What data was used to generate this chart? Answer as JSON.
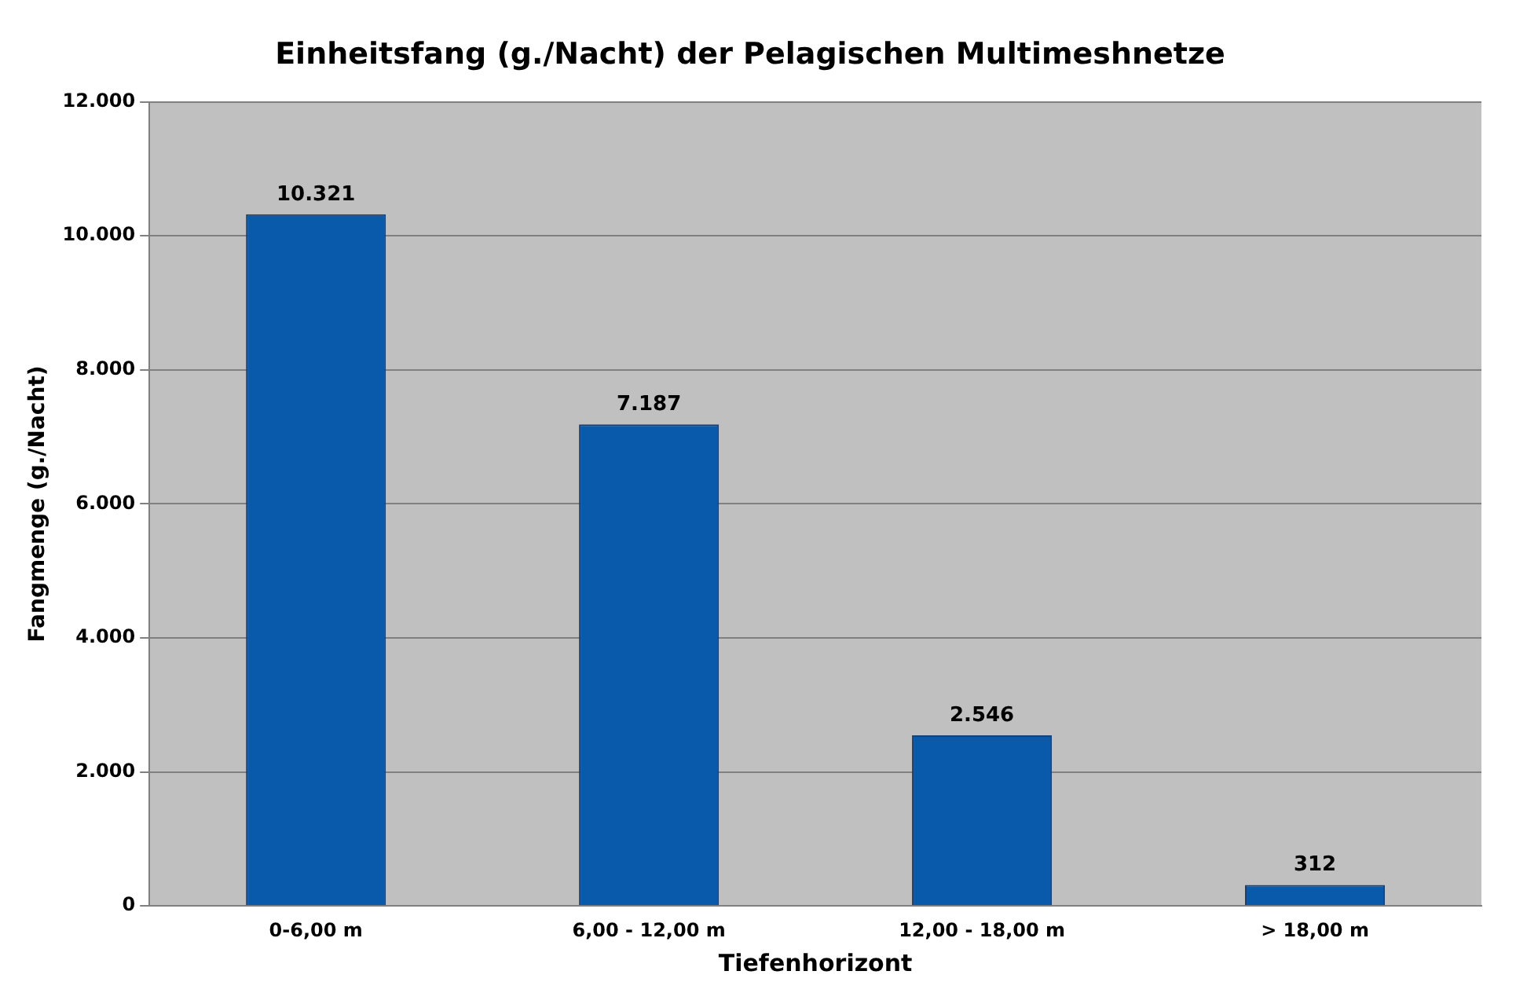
{
  "chart_data": {
    "type": "bar",
    "title": "Einheitsfang (g./Nacht) der Pelagischen Multimeshnetze",
    "xlabel": "Tiefenhorizont",
    "ylabel": "Fangmenge (g./Nacht)",
    "categories": [
      "0-6,00 m",
      "6,00 - 12,00 m",
      "12,00 - 18,00 m",
      "> 18,00 m"
    ],
    "values": [
      10321,
      7187,
      2546,
      312
    ],
    "value_labels": [
      "10.321",
      "7.187",
      "2.546",
      "312"
    ],
    "color": "#0a5aab",
    "ylim": [
      0,
      12000
    ],
    "yticks": [
      {
        "value": 0,
        "label": "0"
      },
      {
        "value": 2000,
        "label": "2.000"
      },
      {
        "value": 4000,
        "label": "4.000"
      },
      {
        "value": 6000,
        "label": "6.000"
      },
      {
        "value": 8000,
        "label": "8.000"
      },
      {
        "value": 10000,
        "label": "10.000"
      },
      {
        "value": 12000,
        "label": "12.000"
      }
    ],
    "grid": "y",
    "legend": false
  }
}
